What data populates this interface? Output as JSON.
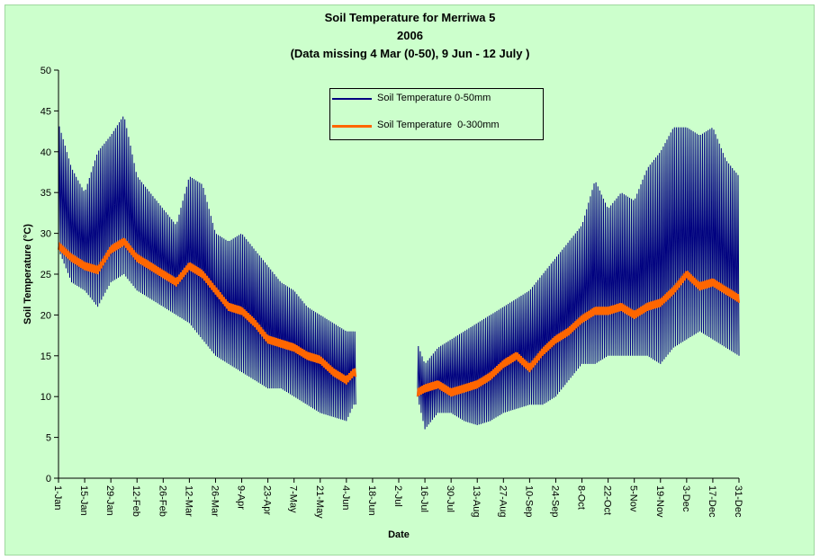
{
  "chart_data": {
    "type": "line",
    "title": "Soil Temperature for Merriwa 5",
    "subtitle": "2006",
    "note": "(Data missing 4 Mar (0-50), 9 Jun - 12 July )",
    "xlabel": "Date",
    "ylabel": "Soil Temperature (°C)",
    "ylim": [
      0,
      50
    ],
    "yticks": [
      0,
      5,
      10,
      15,
      20,
      25,
      30,
      35,
      40,
      45,
      50
    ],
    "xlim": [
      "1-Jan",
      "31-Dec"
    ],
    "xticks": [
      "1-Jan",
      "15-Jan",
      "29-Jan",
      "12-Feb",
      "26-Feb",
      "12-Mar",
      "26-Mar",
      "9-Apr",
      "23-Apr",
      "7-May",
      "21-May",
      "4-Jun",
      "18-Jun",
      "2-Jul",
      "16-Jul",
      "30-Jul",
      "13-Aug",
      "27-Aug",
      "10-Sep",
      "24-Sep",
      "8-Oct",
      "22-Oct",
      "5-Nov",
      "19-Nov",
      "3-Dec",
      "17-Dec",
      "31-Dec"
    ],
    "grid": false,
    "legend_position": "top-center",
    "missing_ranges": [
      [
        "9-Jun",
        "12-Jul"
      ]
    ],
    "series": [
      {
        "name": "Soil Temperature 0-50mm",
        "color": "#000080",
        "dates": [
          "1-Jan",
          "8-Jan",
          "15-Jan",
          "22-Jan",
          "29-Jan",
          "5-Feb",
          "12-Feb",
          "19-Feb",
          "26-Feb",
          "5-Mar",
          "12-Mar",
          "19-Mar",
          "26-Mar",
          "2-Apr",
          "9-Apr",
          "16-Apr",
          "23-Apr",
          "30-Apr",
          "7-May",
          "14-May",
          "21-May",
          "28-May",
          "4-Jun",
          "8-Jun",
          "12-Jul",
          "16-Jul",
          "23-Jul",
          "30-Jul",
          "6-Aug",
          "13-Aug",
          "20-Aug",
          "27-Aug",
          "3-Sep",
          "10-Sep",
          "17-Sep",
          "24-Sep",
          "1-Oct",
          "8-Oct",
          "15-Oct",
          "22-Oct",
          "29-Oct",
          "5-Nov",
          "12-Nov",
          "19-Nov",
          "26-Nov",
          "3-Dec",
          "10-Dec",
          "17-Dec",
          "24-Dec",
          "31-Dec"
        ],
        "daily_max": [
          43.5,
          38,
          35,
          40,
          42,
          44.5,
          37,
          35,
          33,
          31,
          37,
          36,
          30,
          29,
          30,
          28,
          26,
          24,
          23,
          21,
          20,
          19,
          18,
          18,
          16.5,
          14,
          16,
          17,
          18,
          19,
          20,
          21,
          22,
          23,
          25,
          27,
          29,
          31,
          36.5,
          33,
          35,
          34,
          38,
          40,
          43,
          43,
          42,
          43,
          39,
          37
        ],
        "daily_min": [
          28,
          24,
          23,
          21,
          24,
          25,
          23,
          22,
          21,
          20,
          19,
          17,
          15,
          14,
          13,
          12,
          11,
          11,
          10,
          9,
          8,
          7.5,
          7,
          9,
          10,
          6,
          8,
          8,
          7,
          6.5,
          7,
          8,
          8.5,
          9,
          9,
          10,
          12,
          14,
          14,
          15,
          15,
          15,
          15,
          14,
          16,
          17,
          18,
          17,
          16,
          15
        ]
      },
      {
        "name": "Soil Temperature  0-300mm",
        "color": "#ff6600",
        "dates": [
          "1-Jan",
          "8-Jan",
          "15-Jan",
          "22-Jan",
          "29-Jan",
          "5-Feb",
          "12-Feb",
          "19-Feb",
          "26-Feb",
          "5-Mar",
          "12-Mar",
          "19-Mar",
          "26-Mar",
          "2-Apr",
          "9-Apr",
          "16-Apr",
          "23-Apr",
          "30-Apr",
          "7-May",
          "14-May",
          "21-May",
          "28-May",
          "4-Jun",
          "8-Jun",
          "12-Jul",
          "16-Jul",
          "23-Jul",
          "30-Jul",
          "6-Aug",
          "13-Aug",
          "20-Aug",
          "27-Aug",
          "3-Sep",
          "10-Sep",
          "17-Sep",
          "24-Sep",
          "1-Oct",
          "8-Oct",
          "15-Oct",
          "22-Oct",
          "29-Oct",
          "5-Nov",
          "12-Nov",
          "19-Nov",
          "26-Nov",
          "3-Dec",
          "10-Dec",
          "17-Dec",
          "24-Dec",
          "31-Dec"
        ],
        "values": [
          28.5,
          27,
          26,
          25.5,
          28,
          29,
          27,
          26,
          25,
          24,
          26,
          25,
          23,
          21,
          20.5,
          19,
          17,
          16.5,
          16,
          15,
          14.5,
          13,
          12,
          13,
          10.5,
          11,
          11.5,
          10.5,
          11,
          11.5,
          12.5,
          14,
          15,
          13.5,
          15.5,
          17,
          18,
          19.5,
          20.5,
          20.5,
          21,
          20,
          21,
          21.5,
          23,
          25,
          23.5,
          24,
          23,
          22
        ]
      }
    ]
  }
}
